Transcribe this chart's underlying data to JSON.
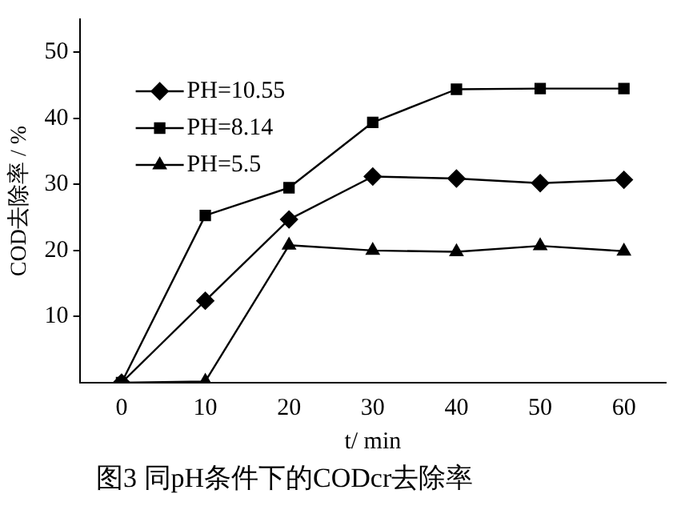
{
  "chart_data": {
    "type": "line",
    "xlabel": "t/ min",
    "ylabel": "COD去除率 / %",
    "x": [
      0,
      10,
      20,
      30,
      40,
      50,
      60
    ],
    "series": [
      {
        "name": "PH=10.55",
        "color": "#000000",
        "marker": "diamond",
        "values": [
          0,
          12.4,
          24.7,
          31.2,
          30.9,
          30.2,
          30.7
        ]
      },
      {
        "name": "PH=8.14",
        "color": "#000000",
        "marker": "square",
        "values": [
          0,
          25.3,
          29.5,
          39.4,
          44.4,
          44.5,
          44.5
        ]
      },
      {
        "name": "PH=5.5",
        "color": "#000000",
        "marker": "triangle",
        "values": [
          0,
          0.2,
          20.8,
          20.0,
          19.8,
          20.7,
          19.9
        ]
      }
    ],
    "xlim": [
      -5,
      65
    ],
    "xticks": [
      0,
      10,
      20,
      30,
      40,
      50,
      60
    ],
    "ylim": [
      0,
      55
    ],
    "yticks": [
      10,
      20,
      30,
      40,
      50
    ],
    "grid": false,
    "legend": "top left",
    "line_style": "solid",
    "annotations": [
      "图3 同pH条件下的CODcr去除率"
    ]
  }
}
